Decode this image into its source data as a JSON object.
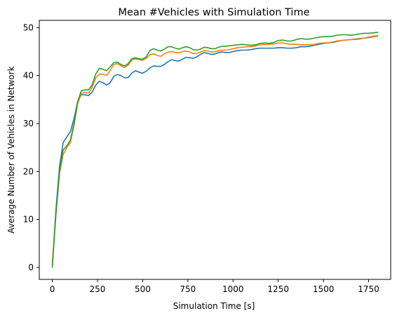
{
  "chart_data": {
    "type": "line",
    "title": "Mean #Vehicles with Simulation Time",
    "xlabel": "Simulation Time [s]",
    "ylabel": "Average Number of Vehicles in Network",
    "xlim": [
      -72,
      1872
    ],
    "ylim": [
      -2.5,
      51.5
    ],
    "xticks": [
      0,
      250,
      500,
      750,
      1000,
      1250,
      1500,
      1750
    ],
    "yticks": [
      0,
      10,
      20,
      30,
      40,
      50
    ],
    "grid": false,
    "series": [
      {
        "color": "#1f77b4",
        "x": [
          0,
          20,
          40,
          60,
          80,
          100,
          120,
          140,
          160,
          180,
          200,
          220,
          240,
          260,
          280,
          300,
          320,
          340,
          360,
          380,
          400,
          420,
          440,
          460,
          480,
          500,
          520,
          540,
          560,
          580,
          600,
          620,
          640,
          660,
          680,
          700,
          720,
          740,
          760,
          780,
          800,
          820,
          840,
          860,
          880,
          900,
          920,
          940,
          960,
          980,
          1000,
          1025,
          1050,
          1075,
          1100,
          1125,
          1150,
          1175,
          1200,
          1225,
          1250,
          1275,
          1300,
          1325,
          1350,
          1375,
          1400,
          1425,
          1450,
          1475,
          1500,
          1525,
          1550,
          1575,
          1600,
          1625,
          1650,
          1675,
          1700,
          1725,
          1750,
          1775,
          1800
        ],
        "values": [
          0.5,
          12,
          21,
          26,
          27.2,
          28.3,
          31,
          34.5,
          36,
          36,
          35.8,
          36.5,
          38,
          38.8,
          38.5,
          38,
          38.5,
          39.8,
          40.2,
          40,
          39.5,
          39.6,
          40.5,
          41,
          40.7,
          40.5,
          40.9,
          41.6,
          42,
          41.9,
          41.9,
          42.3,
          42.9,
          43.3,
          43.1,
          43,
          43.4,
          43.8,
          43.7,
          43.6,
          43.9,
          44.4,
          44.8,
          44.6,
          44.4,
          44.5,
          44.8,
          44.9,
          44.8,
          44.8,
          45,
          45.2,
          45.3,
          45.3,
          45.4,
          45.6,
          45.7,
          45.7,
          45.7,
          45.7,
          45.8,
          45.8,
          45.7,
          45.7,
          45.8,
          46,
          46,
          46.1,
          46.3,
          46.5,
          46.7,
          46.8,
          46.9,
          47.1,
          47.3,
          47.4,
          47.5,
          47.6,
          47.7,
          47.8,
          47.9,
          48.1,
          48.2
        ]
      },
      {
        "color": "#ff7f0e",
        "x": [
          0,
          20,
          40,
          60,
          80,
          100,
          120,
          140,
          160,
          180,
          200,
          220,
          240,
          260,
          280,
          300,
          320,
          340,
          360,
          380,
          400,
          420,
          440,
          460,
          480,
          500,
          520,
          540,
          560,
          580,
          600,
          620,
          640,
          660,
          680,
          700,
          720,
          740,
          760,
          780,
          800,
          820,
          840,
          860,
          880,
          900,
          920,
          940,
          960,
          980,
          1000,
          1025,
          1050,
          1075,
          1100,
          1125,
          1150,
          1175,
          1200,
          1225,
          1250,
          1275,
          1300,
          1325,
          1350,
          1375,
          1400,
          1425,
          1450,
          1475,
          1500,
          1525,
          1550,
          1575,
          1600,
          1625,
          1650,
          1675,
          1700,
          1725,
          1750,
          1775,
          1800
        ],
        "values": [
          1,
          11,
          19.5,
          23.5,
          25,
          26,
          29.5,
          34,
          36.3,
          36.5,
          36.3,
          37.5,
          39.5,
          40.3,
          40.3,
          40,
          41,
          42.3,
          42.5,
          42,
          41.7,
          42.2,
          43.2,
          43.5,
          43.3,
          43.2,
          43.6,
          44.3,
          44.5,
          44.2,
          44,
          44.5,
          44.9,
          45,
          44.8,
          44.7,
          45,
          45.1,
          44.9,
          44.6,
          44.6,
          44.9,
          45.2,
          45.1,
          44.9,
          45,
          45.2,
          45.3,
          45.3,
          45.4,
          45.6,
          45.8,
          45.9,
          46,
          46,
          46.2,
          46.4,
          46.5,
          46.5,
          46.6,
          46.8,
          46.8,
          46.6,
          46.5,
          46.5,
          46.4,
          46.4,
          46.4,
          46.5,
          46.7,
          46.8,
          46.8,
          47,
          47.2,
          47.3,
          47.4,
          47.5,
          47.5,
          47.6,
          47.8,
          48,
          48.2,
          48.3
        ]
      },
      {
        "color": "#2ca02c",
        "x": [
          0,
          20,
          40,
          60,
          80,
          100,
          120,
          140,
          160,
          180,
          200,
          220,
          240,
          260,
          280,
          300,
          320,
          340,
          360,
          380,
          400,
          420,
          440,
          460,
          480,
          500,
          520,
          540,
          560,
          580,
          600,
          620,
          640,
          660,
          680,
          700,
          720,
          740,
          760,
          780,
          800,
          820,
          840,
          860,
          880,
          900,
          920,
          940,
          960,
          980,
          1000,
          1025,
          1050,
          1075,
          1100,
          1125,
          1150,
          1175,
          1200,
          1225,
          1250,
          1275,
          1300,
          1325,
          1350,
          1375,
          1400,
          1425,
          1450,
          1475,
          1500,
          1525,
          1550,
          1575,
          1600,
          1625,
          1650,
          1675,
          1700,
          1725,
          1750,
          1775,
          1800
        ],
        "values": [
          0,
          11,
          20,
          24.5,
          25.3,
          26.5,
          30,
          34.5,
          36.8,
          37,
          37,
          38,
          40.3,
          41.5,
          41.3,
          41,
          41.8,
          42.7,
          42.8,
          42.3,
          42,
          42.5,
          43.5,
          43.7,
          43.5,
          43.4,
          43.9,
          45.2,
          45.6,
          45.3,
          45.1,
          45.5,
          46,
          46,
          45.7,
          45.5,
          45.8,
          46,
          45.8,
          45.4,
          45.3,
          45.5,
          45.9,
          45.8,
          45.6,
          45.6,
          45.9,
          46.1,
          46.1,
          46.2,
          46.3,
          46.4,
          46.5,
          46.4,
          46.3,
          46.4,
          46.7,
          46.8,
          46.7,
          46.9,
          47.3,
          47.4,
          47.2,
          47.2,
          47.5,
          47.7,
          47.6,
          47.6,
          47.8,
          48,
          48.1,
          48.1,
          48.2,
          48.4,
          48.5,
          48.5,
          48.4,
          48.5,
          48.7,
          48.8,
          48.8,
          48.9,
          49
        ]
      }
    ]
  }
}
